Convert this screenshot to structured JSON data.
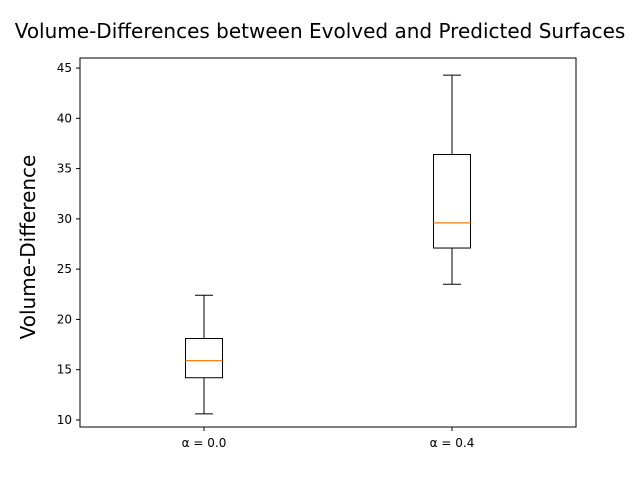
{
  "chart_data": {
    "type": "box",
    "title": "Volume-Differences between Evolved and Predicted Surfaces",
    "xlabel": "",
    "ylabel": "Volume-Difference",
    "ylim": [
      9.3,
      46.0
    ],
    "yticks": [
      10,
      15,
      20,
      25,
      30,
      35,
      40,
      45
    ],
    "grid": false,
    "categories": [
      "α = 0.0",
      "α = 0.4"
    ],
    "boxes": [
      {
        "label": "α = 0.0",
        "whisker_low": 10.6,
        "q1": 14.2,
        "median": 15.9,
        "q3": 18.1,
        "whisker_high": 22.4
      },
      {
        "label": "α = 0.4",
        "whisker_low": 23.5,
        "q1": 27.1,
        "median": 29.6,
        "q3": 36.4,
        "whisker_high": 44.3
      }
    ],
    "colors": {
      "box": "#000000",
      "median": "#ff7f0e",
      "axes": "#000000"
    }
  }
}
